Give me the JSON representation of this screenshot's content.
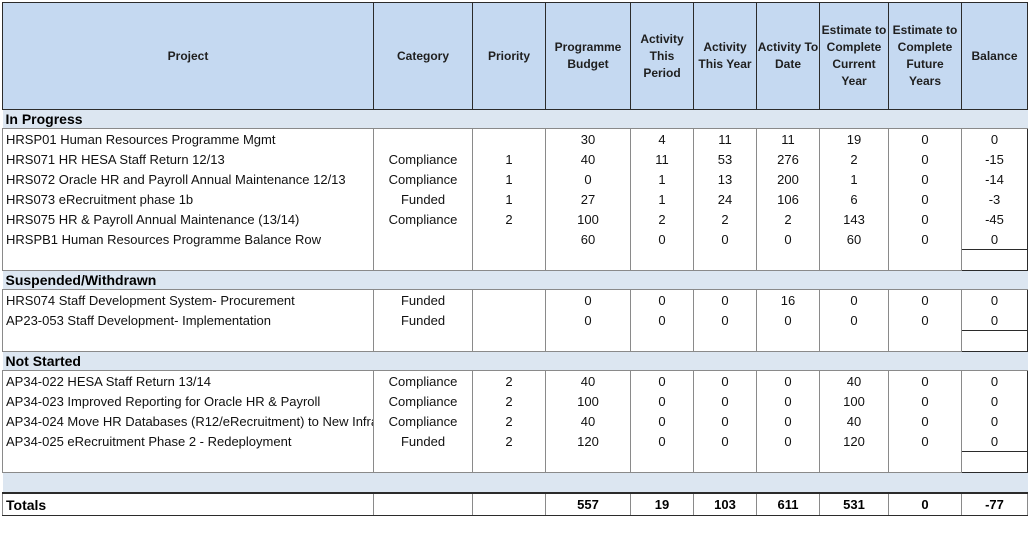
{
  "headers": {
    "project": "Project",
    "category": "Category",
    "priority": "Priority",
    "budget": "Programme Budget",
    "period": "Activity This Period",
    "year": "Activity This Year",
    "todate": "Activity To Date",
    "etc_current": "Estimate to Complete Current Year",
    "etc_future": "Estimate to Complete Future Years",
    "balance": "Balance"
  },
  "sections": [
    {
      "title": "In Progress",
      "rows": [
        [
          "HRSP01 Human Resources Programme Mgmt",
          "",
          "",
          "30",
          "4",
          "11",
          "11",
          "19",
          "0",
          "0"
        ],
        [
          "HRS071 HR HESA Staff Return 12/13",
          "Compliance",
          "1",
          "40",
          "11",
          "53",
          "276",
          "2",
          "0",
          "-15"
        ],
        [
          "HRS072 Oracle HR and Payroll Annual Maintenance 12/13",
          "Compliance",
          "1",
          "0",
          "1",
          "13",
          "200",
          "1",
          "0",
          "-14"
        ],
        [
          "HRS073 eRecruitment phase 1b",
          "Funded",
          "1",
          "27",
          "1",
          "24",
          "106",
          "6",
          "0",
          "-3"
        ],
        [
          "HRS075 HR & Payroll Annual Maintenance (13/14)",
          "Compliance",
          "2",
          "100",
          "2",
          "2",
          "2",
          "143",
          "0",
          "-45"
        ],
        [
          "HRSPB1 Human Resources Programme Balance Row",
          "",
          "",
          "60",
          "0",
          "0",
          "0",
          "60",
          "0",
          "0"
        ]
      ]
    },
    {
      "title": "Suspended/Withdrawn",
      "rows": [
        [
          "HRS074 Staff Development System- Procurement",
          "Funded",
          "",
          "0",
          "0",
          "0",
          "16",
          "0",
          "0",
          "0"
        ],
        [
          "AP23-053 Staff Development- Implementation",
          "Funded",
          "",
          "0",
          "0",
          "0",
          "0",
          "0",
          "0",
          "0"
        ]
      ]
    },
    {
      "title": "Not Started",
      "rows": [
        [
          "AP34-022 HESA Staff Return 13/14",
          "Compliance",
          "2",
          "40",
          "0",
          "0",
          "0",
          "40",
          "0",
          "0"
        ],
        [
          "AP34-023 Improved Reporting for Oracle HR & Payroll",
          "Compliance",
          "2",
          "100",
          "0",
          "0",
          "0",
          "100",
          "0",
          "0"
        ],
        [
          "AP34-024 Move HR Databases (R12/eRecruitment) to New Infra",
          "Compliance",
          "2",
          "40",
          "0",
          "0",
          "0",
          "40",
          "0",
          "0"
        ],
        [
          "AP34-025 eRecruitment Phase 2 - Redeployment",
          "Funded",
          "2",
          "120",
          "0",
          "0",
          "0",
          "120",
          "0",
          "0"
        ]
      ]
    }
  ],
  "totals": {
    "label": "Totals",
    "values": [
      "",
      "",
      "557",
      "19",
      "103",
      "611",
      "531",
      "0",
      "-77"
    ]
  }
}
